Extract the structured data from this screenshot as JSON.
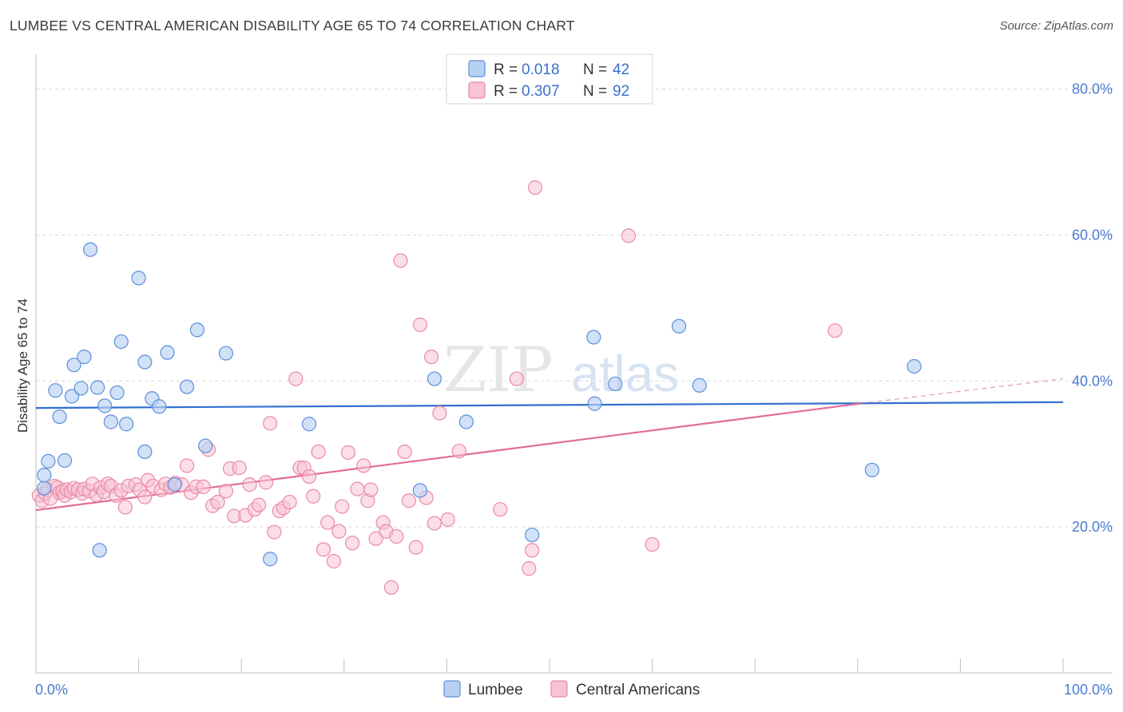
{
  "title": "LUMBEE VS CENTRAL AMERICAN DISABILITY AGE 65 TO 74 CORRELATION CHART",
  "source": "Source: ZipAtlas.com",
  "watermark": {
    "part1": "ZIP",
    "part2": "atlas"
  },
  "colors": {
    "lumbee_fill": "#b8d1f3",
    "lumbee_stroke": "#5b8fd8",
    "lumbee_line": "#2f6fcf",
    "central_fill": "#f8c3d3",
    "central_stroke": "#e98aa8",
    "central_line": "#e06b98",
    "grid": "#d8d8d8",
    "tick_label": "#4a7bd0"
  },
  "legend": {
    "rows": [
      {
        "r_label": "R = ",
        "r_value": "0.018",
        "n_label": "N = ",
        "n_value": "42"
      },
      {
        "r_label": "R = ",
        "r_value": "0.307",
        "n_label": "N = ",
        "n_value": "92"
      }
    ]
  },
  "chart_data": {
    "type": "scatter",
    "title": "LUMBEE VS CENTRAL AMERICAN DISABILITY AGE 65 TO 74 CORRELATION CHART",
    "xlabel": "",
    "ylabel": "Disability Age 65 to 74",
    "xlim": [
      0,
      100
    ],
    "ylim": [
      0,
      84
    ],
    "x_tick_labels": [
      "0.0%",
      "100.0%"
    ],
    "y_ticks": [
      20,
      40,
      60,
      80
    ],
    "y_tick_labels": [
      "20.0%",
      "40.0%",
      "60.0%",
      "80.0%"
    ],
    "grid": "horizontal dashed",
    "legend_position": "top-center",
    "series": [
      {
        "name": "Lumbee",
        "r": 0.018,
        "n": 42,
        "trend": {
          "x": [
            0,
            100
          ],
          "y": [
            36.3,
            37.1
          ],
          "dashed_from": null
        },
        "points": [
          [
            0.8,
            25.3
          ],
          [
            0.8,
            27.1
          ],
          [
            1.2,
            29.0
          ],
          [
            1.9,
            38.7
          ],
          [
            2.3,
            35.1
          ],
          [
            2.8,
            29.1
          ],
          [
            3.5,
            37.9
          ],
          [
            3.7,
            42.2
          ],
          [
            4.4,
            39.0
          ],
          [
            4.7,
            43.3
          ],
          [
            5.3,
            58.0
          ],
          [
            6.0,
            39.1
          ],
          [
            6.2,
            16.8
          ],
          [
            6.7,
            36.6
          ],
          [
            7.3,
            34.4
          ],
          [
            7.9,
            38.4
          ],
          [
            8.3,
            45.4
          ],
          [
            8.8,
            34.1
          ],
          [
            10.0,
            54.1
          ],
          [
            10.6,
            42.6
          ],
          [
            10.6,
            30.3
          ],
          [
            11.3,
            37.6
          ],
          [
            12.0,
            36.5
          ],
          [
            12.8,
            43.9
          ],
          [
            13.5,
            25.8
          ],
          [
            14.7,
            39.2
          ],
          [
            15.7,
            47.0
          ],
          [
            16.5,
            31.1
          ],
          [
            18.5,
            43.8
          ],
          [
            22.8,
            15.6
          ],
          [
            26.6,
            34.1
          ],
          [
            37.4,
            25.0
          ],
          [
            38.8,
            40.3
          ],
          [
            41.9,
            34.4
          ],
          [
            48.3,
            18.9
          ],
          [
            54.3,
            46.0
          ],
          [
            54.4,
            36.9
          ],
          [
            56.4,
            39.6
          ],
          [
            62.6,
            47.5
          ],
          [
            64.6,
            39.4
          ],
          [
            81.4,
            27.8
          ],
          [
            85.5,
            42.0
          ]
        ]
      },
      {
        "name": "Central Americans",
        "r": 0.307,
        "n": 92,
        "trend": {
          "x": [
            0,
            80.2,
            100
          ],
          "y": [
            22.3,
            36.9,
            40.3
          ],
          "dashed_from": 80.2
        },
        "points": [
          [
            0.3,
            24.3
          ],
          [
            0.6,
            23.6
          ],
          [
            0.9,
            24.6
          ],
          [
            1.1,
            25.1
          ],
          [
            1.4,
            23.9
          ],
          [
            1.8,
            25.6
          ],
          [
            2.1,
            25.4
          ],
          [
            2.3,
            24.7
          ],
          [
            2.6,
            24.9
          ],
          [
            2.8,
            24.3
          ],
          [
            3.0,
            25.1
          ],
          [
            3.4,
            24.8
          ],
          [
            3.7,
            25.3
          ],
          [
            4.1,
            25.1
          ],
          [
            4.5,
            24.6
          ],
          [
            4.7,
            25.2
          ],
          [
            5.2,
            24.9
          ],
          [
            5.5,
            25.9
          ],
          [
            5.9,
            24.4
          ],
          [
            6.3,
            25.4
          ],
          [
            6.6,
            24.8
          ],
          [
            7.0,
            25.9
          ],
          [
            7.3,
            25.6
          ],
          [
            7.8,
            24.3
          ],
          [
            8.3,
            25.0
          ],
          [
            8.7,
            22.7
          ],
          [
            9.0,
            25.6
          ],
          [
            9.7,
            25.8
          ],
          [
            10.1,
            25.1
          ],
          [
            10.6,
            24.1
          ],
          [
            10.9,
            26.4
          ],
          [
            11.4,
            25.6
          ],
          [
            12.2,
            25.1
          ],
          [
            12.6,
            25.9
          ],
          [
            13.1,
            25.4
          ],
          [
            13.6,
            26.0
          ],
          [
            14.2,
            25.8
          ],
          [
            14.7,
            28.4
          ],
          [
            15.1,
            24.7
          ],
          [
            15.6,
            25.5
          ],
          [
            16.3,
            25.5
          ],
          [
            16.8,
            30.6
          ],
          [
            17.2,
            22.9
          ],
          [
            17.7,
            23.4
          ],
          [
            18.5,
            24.9
          ],
          [
            18.9,
            28.0
          ],
          [
            19.3,
            21.5
          ],
          [
            19.8,
            28.1
          ],
          [
            20.4,
            21.6
          ],
          [
            20.8,
            25.8
          ],
          [
            21.3,
            22.4
          ],
          [
            21.7,
            23.0
          ],
          [
            22.4,
            26.1
          ],
          [
            22.8,
            34.2
          ],
          [
            23.2,
            19.3
          ],
          [
            23.7,
            22.2
          ],
          [
            24.1,
            22.6
          ],
          [
            24.7,
            23.4
          ],
          [
            25.3,
            40.3
          ],
          [
            25.7,
            28.1
          ],
          [
            26.1,
            28.1
          ],
          [
            26.6,
            26.9
          ],
          [
            27.0,
            24.2
          ],
          [
            27.5,
            30.3
          ],
          [
            28.0,
            16.9
          ],
          [
            28.4,
            20.6
          ],
          [
            29.0,
            15.3
          ],
          [
            29.5,
            19.4
          ],
          [
            29.8,
            22.8
          ],
          [
            30.4,
            30.2
          ],
          [
            30.8,
            17.8
          ],
          [
            31.3,
            25.2
          ],
          [
            31.9,
            28.4
          ],
          [
            32.3,
            23.6
          ],
          [
            32.6,
            25.1
          ],
          [
            33.1,
            18.4
          ],
          [
            33.8,
            20.6
          ],
          [
            34.1,
            19.4
          ],
          [
            34.6,
            11.7
          ],
          [
            35.1,
            18.7
          ],
          [
            35.5,
            56.5
          ],
          [
            35.9,
            30.3
          ],
          [
            36.3,
            23.6
          ],
          [
            37.0,
            17.2
          ],
          [
            37.4,
            47.7
          ],
          [
            38.0,
            24.0
          ],
          [
            38.5,
            43.3
          ],
          [
            38.8,
            20.5
          ],
          [
            39.3,
            35.6
          ],
          [
            40.1,
            21.0
          ],
          [
            41.2,
            30.4
          ],
          [
            45.2,
            22.4
          ]
        ]
      }
    ]
  },
  "bottom_legend": {
    "items": [
      {
        "label": "Lumbee"
      },
      {
        "label": "Central Americans"
      }
    ]
  },
  "extra_points_central": [
    [
      46.8,
      40.3
    ],
    [
      48.0,
      14.3
    ],
    [
      48.3,
      16.8
    ],
    [
      48.6,
      66.5
    ],
    [
      57.7,
      59.9
    ],
    [
      60.0,
      17.6
    ],
    [
      77.8,
      46.9
    ]
  ]
}
